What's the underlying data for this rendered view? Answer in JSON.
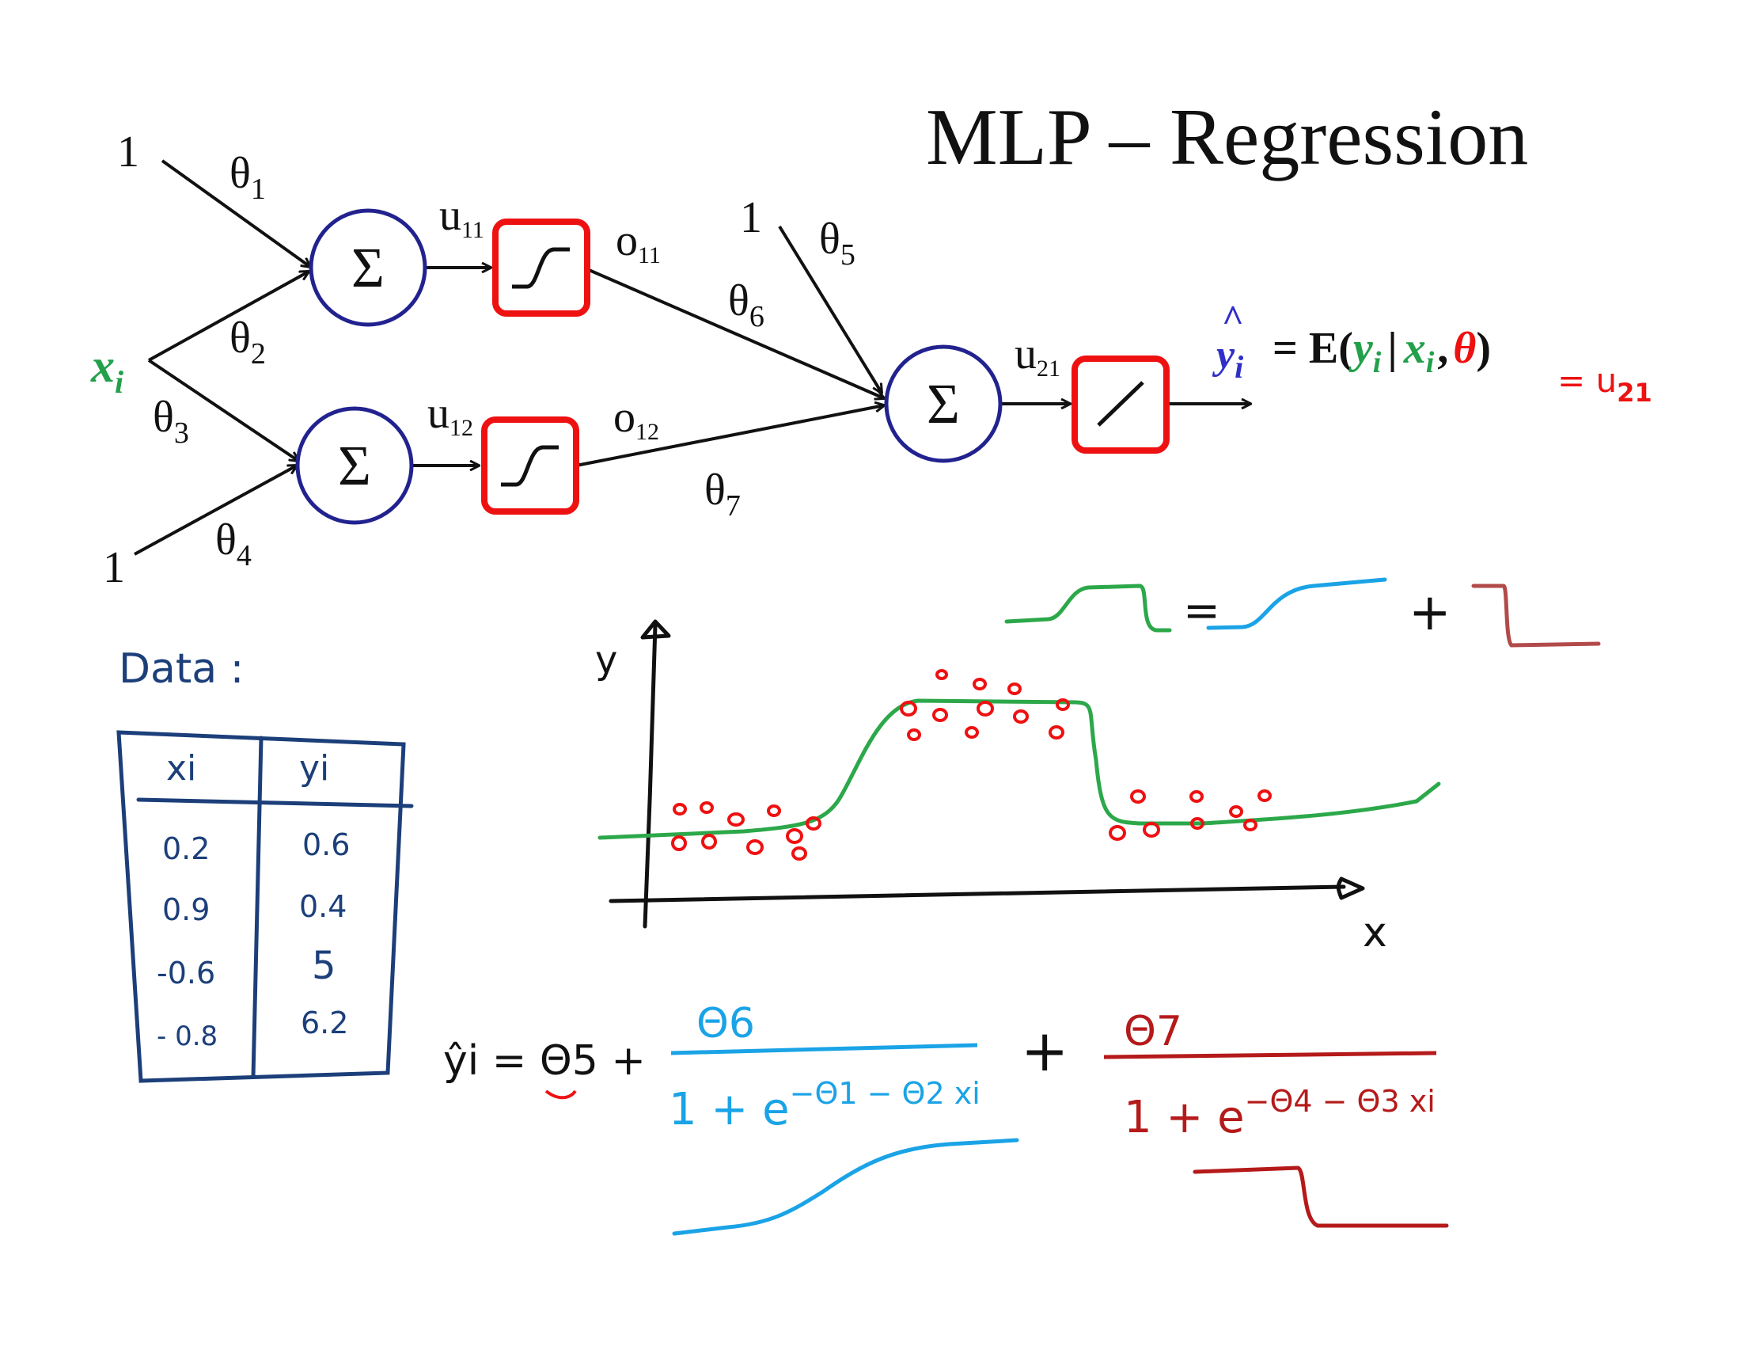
{
  "title": "MLP – Regression",
  "colors": {
    "node_stroke": "#22228f",
    "activation_stroke": "#ee1111",
    "green": "#22a04a",
    "blue": "#2f2fc8",
    "red": "#ee1111",
    "table_ink": "#1c3f7a",
    "cyan": "#1aa3e6",
    "dark_red": "#b51a1a",
    "brown_red": "#b24a4a",
    "chart_green": "#2ca84a"
  },
  "network": {
    "bias_top_left": "1",
    "bias_bottom_left": "1",
    "bias_output": "1",
    "input": {
      "base": "x",
      "sub": "i"
    },
    "weights": {
      "t1": {
        "base": "θ",
        "sub": "1"
      },
      "t2": {
        "base": "θ",
        "sub": "2"
      },
      "t3": {
        "base": "θ",
        "sub": "3"
      },
      "t4": {
        "base": "θ",
        "sub": "4"
      },
      "t5": {
        "base": "θ",
        "sub": "5"
      },
      "t6": {
        "base": "θ",
        "sub": "6"
      },
      "t7": {
        "base": "θ",
        "sub": "7"
      }
    },
    "sum_symbol": "Σ",
    "u11": {
      "base": "u",
      "sub": "11"
    },
    "u12": {
      "base": "u",
      "sub": "12"
    },
    "u21": {
      "base": "u",
      "sub": "21"
    },
    "o11": {
      "base": "o",
      "sub": "11"
    },
    "o12": {
      "base": "o",
      "sub": "12"
    },
    "activation_hidden": "sigmoid-icon",
    "activation_output": "linear-icon"
  },
  "equation": {
    "yhat": "y",
    "hat": "^",
    "sub_i": "i",
    "equals_E": "= E(",
    "y": "y",
    "bar": "|",
    "x": "x",
    "comma": ",",
    "theta": "θ",
    "close": ")",
    "handwritten_tail": "= u",
    "handwritten_sub": "21"
  },
  "data_table": {
    "heading": "Data :",
    "headers": [
      "xi",
      "yi"
    ],
    "rows": [
      [
        "0.2",
        "0.6"
      ],
      [
        "0.9",
        "0.4"
      ],
      [
        "-0.6",
        "5"
      ],
      [
        "- 0.8",
        "6.2"
      ]
    ]
  },
  "shape_equation": {
    "equals": "=",
    "plus": "+"
  },
  "chart_data": {
    "type": "scatter",
    "xlabel": "x",
    "ylabel": "y",
    "grid": false
  },
  "formula": {
    "lhs": "ŷi = Θ5 +",
    "t1_num": "Θ6",
    "t1_den": "1 + e",
    "t1_exp": "−Θ1 − Θ2 xi",
    "plus": "+",
    "t2_num": "Θ7",
    "t2_den": "1 + e",
    "t2_exp": "−Θ4 − Θ3 xi"
  }
}
